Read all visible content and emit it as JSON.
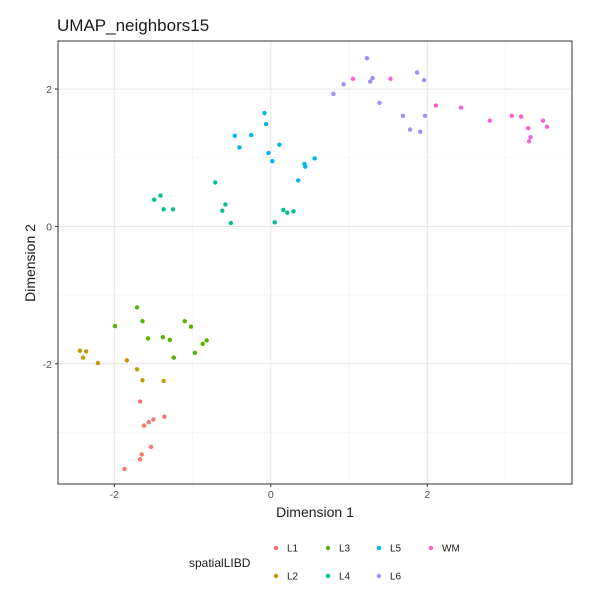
{
  "chart_data": {
    "type": "scatter",
    "title": "UMAP_neighbors15",
    "xlabel": "Dimension 1",
    "ylabel": "Dimension 2",
    "xlim": [
      -2.72,
      3.85
    ],
    "ylim": [
      -3.75,
      2.7
    ],
    "xticks": [
      -2,
      0,
      2
    ],
    "yticks": [
      -2,
      0,
      2
    ],
    "xtick_labels": [
      "-2",
      "0",
      "2"
    ],
    "ytick_labels": [
      "-2",
      "0",
      "2"
    ],
    "grid": true,
    "legend_title": "spatialLIBD",
    "legend_position": "bottom",
    "series": [
      {
        "name": "L1",
        "color": "#F8766D",
        "points": [
          [
            -1.87,
            -3.53
          ],
          [
            -1.67,
            -3.39
          ],
          [
            -1.65,
            -3.32
          ],
          [
            -1.53,
            -3.21
          ],
          [
            -1.56,
            -2.85
          ],
          [
            -1.62,
            -2.9
          ],
          [
            -1.5,
            -2.81
          ],
          [
            -1.36,
            -2.77
          ],
          [
            -1.67,
            -2.55
          ]
        ]
      },
      {
        "name": "L2",
        "color": "#C49A00",
        "points": [
          [
            -2.44,
            -1.81
          ],
          [
            -2.36,
            -1.82
          ],
          [
            -2.4,
            -1.91
          ],
          [
            -2.21,
            -1.99
          ],
          [
            -1.84,
            -1.95
          ],
          [
            -1.71,
            -2.08
          ],
          [
            -1.64,
            -2.24
          ],
          [
            -1.37,
            -2.25
          ]
        ]
      },
      {
        "name": "L3",
        "color": "#53B400",
        "points": [
          [
            -1.99,
            -1.45
          ],
          [
            -1.71,
            -1.18
          ],
          [
            -1.64,
            -1.38
          ],
          [
            -1.57,
            -1.63
          ],
          [
            -1.38,
            -1.61
          ],
          [
            -1.29,
            -1.65
          ],
          [
            -1.24,
            -1.91
          ],
          [
            -1.1,
            -1.38
          ],
          [
            -1.02,
            -1.46
          ],
          [
            -0.97,
            -1.84
          ],
          [
            -0.87,
            -1.71
          ],
          [
            -0.82,
            -1.66
          ]
        ]
      },
      {
        "name": "L4",
        "color": "#00C094",
        "points": [
          [
            -1.49,
            0.39
          ],
          [
            -1.41,
            0.45
          ],
          [
            -1.37,
            0.25
          ],
          [
            -1.25,
            0.25
          ],
          [
            -0.71,
            0.64
          ],
          [
            -0.62,
            0.23
          ],
          [
            -0.58,
            0.32
          ],
          [
            -0.51,
            0.05
          ],
          [
            0.05,
            0.06
          ],
          [
            0.16,
            0.24
          ],
          [
            0.21,
            0.2
          ],
          [
            0.29,
            0.22
          ]
        ]
      },
      {
        "name": "L5",
        "color": "#00B6EB",
        "points": [
          [
            -0.46,
            1.32
          ],
          [
            -0.4,
            1.15
          ],
          [
            -0.25,
            1.33
          ],
          [
            -0.08,
            1.65
          ],
          [
            -0.06,
            1.49
          ],
          [
            -0.03,
            1.07
          ],
          [
            0.02,
            0.95
          ],
          [
            0.11,
            1.19
          ],
          [
            0.35,
            0.67
          ],
          [
            0.43,
            0.91
          ],
          [
            0.44,
            0.87
          ],
          [
            0.56,
            0.99
          ]
        ]
      },
      {
        "name": "L6",
        "color": "#A58AFF",
        "points": [
          [
            0.8,
            1.93
          ],
          [
            0.93,
            2.07
          ],
          [
            1.23,
            2.45
          ],
          [
            1.27,
            2.11
          ],
          [
            1.3,
            2.16
          ],
          [
            1.39,
            1.8
          ],
          [
            1.69,
            1.61
          ],
          [
            1.78,
            1.41
          ],
          [
            1.87,
            2.24
          ],
          [
            1.91,
            1.38
          ],
          [
            1.96,
            2.13
          ],
          [
            1.97,
            1.61
          ]
        ]
      },
      {
        "name": "WM",
        "color": "#FB61D7",
        "points": [
          [
            1.05,
            2.15
          ],
          [
            1.53,
            2.15
          ],
          [
            2.11,
            1.76
          ],
          [
            2.43,
            1.73
          ],
          [
            2.8,
            1.54
          ],
          [
            3.08,
            1.61
          ],
          [
            3.2,
            1.6
          ],
          [
            3.29,
            1.43
          ],
          [
            3.3,
            1.24
          ],
          [
            3.32,
            1.3
          ],
          [
            3.48,
            1.54
          ],
          [
            3.53,
            1.45
          ]
        ]
      }
    ]
  }
}
